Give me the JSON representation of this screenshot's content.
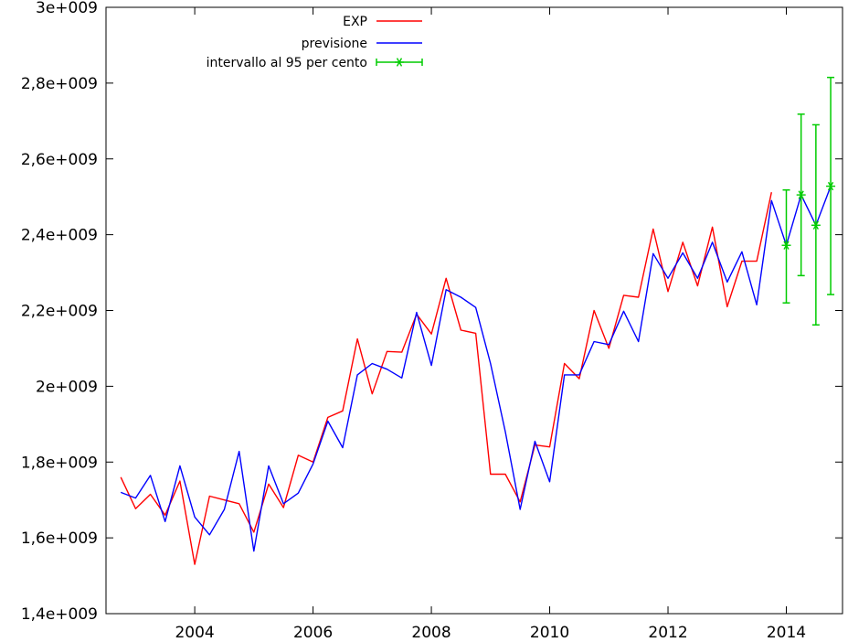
{
  "chart_data": {
    "type": "line",
    "title": "",
    "xlabel": "",
    "ylabel": "",
    "xlim": [
      2002.5,
      2014.95
    ],
    "ylim": [
      1400000000,
      3000000000
    ],
    "grid": false,
    "legend_position": "top-left",
    "x_ticks": [
      {
        "value": 2004,
        "label": "2004"
      },
      {
        "value": 2006,
        "label": "2006"
      },
      {
        "value": 2008,
        "label": "2008"
      },
      {
        "value": 2010,
        "label": "2010"
      },
      {
        "value": 2012,
        "label": "2012"
      },
      {
        "value": 2014,
        "label": "2014"
      }
    ],
    "y_ticks": [
      {
        "value": 1400000000,
        "label": "1,4e+009"
      },
      {
        "value": 1600000000,
        "label": "1,6e+009"
      },
      {
        "value": 1800000000,
        "label": "1,8e+009"
      },
      {
        "value": 2000000000,
        "label": "2e+009"
      },
      {
        "value": 2200000000,
        "label": "2,2e+009"
      },
      {
        "value": 2400000000,
        "label": "2,4e+009"
      },
      {
        "value": 2600000000,
        "label": "2,6e+009"
      },
      {
        "value": 2800000000,
        "label": "2,8e+009"
      },
      {
        "value": 3000000000,
        "label": "3e+009"
      }
    ],
    "series": [
      {
        "name": "EXP",
        "color": "#ff0000",
        "points": [
          [
            2002.75,
            1760000000
          ],
          [
            2003.0,
            1677000000
          ],
          [
            2003.25,
            1715000000
          ],
          [
            2003.5,
            1660000000
          ],
          [
            2003.75,
            1750000000
          ],
          [
            2004.0,
            1530000000
          ],
          [
            2004.25,
            1710000000
          ],
          [
            2004.5,
            1700000000
          ],
          [
            2004.75,
            1690000000
          ],
          [
            2005.0,
            1615000000
          ],
          [
            2005.25,
            1742000000
          ],
          [
            2005.5,
            1680000000
          ],
          [
            2005.75,
            1818000000
          ],
          [
            2006.0,
            1800000000
          ],
          [
            2006.25,
            1918000000
          ],
          [
            2006.5,
            1935000000
          ],
          [
            2006.75,
            2125000000
          ],
          [
            2007.0,
            1980000000
          ],
          [
            2007.25,
            2092000000
          ],
          [
            2007.5,
            2090000000
          ],
          [
            2007.75,
            2190000000
          ],
          [
            2008.0,
            2138000000
          ],
          [
            2008.25,
            2285000000
          ],
          [
            2008.5,
            2148000000
          ],
          [
            2008.75,
            2140000000
          ],
          [
            2009.0,
            1768000000
          ],
          [
            2009.25,
            1768000000
          ],
          [
            2009.5,
            1695000000
          ],
          [
            2009.75,
            1845000000
          ],
          [
            2010.0,
            1840000000
          ],
          [
            2010.25,
            2060000000
          ],
          [
            2010.5,
            2020000000
          ],
          [
            2010.75,
            2200000000
          ],
          [
            2011.0,
            2100000000
          ],
          [
            2011.25,
            2240000000
          ],
          [
            2011.5,
            2235000000
          ],
          [
            2011.75,
            2415000000
          ],
          [
            2012.0,
            2250000000
          ],
          [
            2012.25,
            2380000000
          ],
          [
            2012.5,
            2265000000
          ],
          [
            2012.75,
            2420000000
          ],
          [
            2013.0,
            2210000000
          ],
          [
            2013.25,
            2330000000
          ],
          [
            2013.5,
            2330000000
          ],
          [
            2013.75,
            2512000000
          ]
        ]
      },
      {
        "name": "previsione",
        "color": "#0000ff",
        "points": [
          [
            2002.75,
            1720000000
          ],
          [
            2003.0,
            1705000000
          ],
          [
            2003.25,
            1765000000
          ],
          [
            2003.5,
            1643000000
          ],
          [
            2003.75,
            1790000000
          ],
          [
            2004.0,
            1655000000
          ],
          [
            2004.25,
            1608000000
          ],
          [
            2004.5,
            1675000000
          ],
          [
            2004.75,
            1828000000
          ],
          [
            2005.0,
            1565000000
          ],
          [
            2005.25,
            1790000000
          ],
          [
            2005.5,
            1690000000
          ],
          [
            2005.75,
            1718000000
          ],
          [
            2006.0,
            1795000000
          ],
          [
            2006.25,
            1908000000
          ],
          [
            2006.5,
            1838000000
          ],
          [
            2006.75,
            2030000000
          ],
          [
            2007.0,
            2060000000
          ],
          [
            2007.25,
            2045000000
          ],
          [
            2007.5,
            2022000000
          ],
          [
            2007.75,
            2195000000
          ],
          [
            2008.0,
            2055000000
          ],
          [
            2008.25,
            2255000000
          ],
          [
            2008.5,
            2235000000
          ],
          [
            2008.75,
            2208000000
          ],
          [
            2009.0,
            2060000000
          ],
          [
            2009.25,
            1880000000
          ],
          [
            2009.5,
            1675000000
          ],
          [
            2009.75,
            1855000000
          ],
          [
            2010.0,
            1748000000
          ],
          [
            2010.25,
            2030000000
          ],
          [
            2010.5,
            2030000000
          ],
          [
            2010.75,
            2118000000
          ],
          [
            2011.0,
            2110000000
          ],
          [
            2011.25,
            2198000000
          ],
          [
            2011.5,
            2118000000
          ],
          [
            2011.75,
            2350000000
          ],
          [
            2012.0,
            2285000000
          ],
          [
            2012.25,
            2352000000
          ],
          [
            2012.5,
            2285000000
          ],
          [
            2012.75,
            2380000000
          ],
          [
            2013.0,
            2275000000
          ],
          [
            2013.25,
            2355000000
          ],
          [
            2013.5,
            2215000000
          ],
          [
            2013.75,
            2490000000
          ],
          [
            2014.0,
            2372000000
          ],
          [
            2014.25,
            2505000000
          ],
          [
            2014.5,
            2425000000
          ],
          [
            2014.75,
            2528000000
          ]
        ]
      },
      {
        "name": "intervallo al 95 per cento",
        "color": "#00cc00",
        "type": "errorbar",
        "points": [
          {
            "x": 2014.0,
            "y": 2372000000,
            "low": 2220000000,
            "high": 2518000000
          },
          {
            "x": 2014.25,
            "y": 2505000000,
            "low": 2292000000,
            "high": 2718000000
          },
          {
            "x": 2014.5,
            "y": 2425000000,
            "low": 2162000000,
            "high": 2690000000
          },
          {
            "x": 2014.75,
            "y": 2528000000,
            "low": 2242000000,
            "high": 2815000000
          }
        ]
      }
    ]
  }
}
